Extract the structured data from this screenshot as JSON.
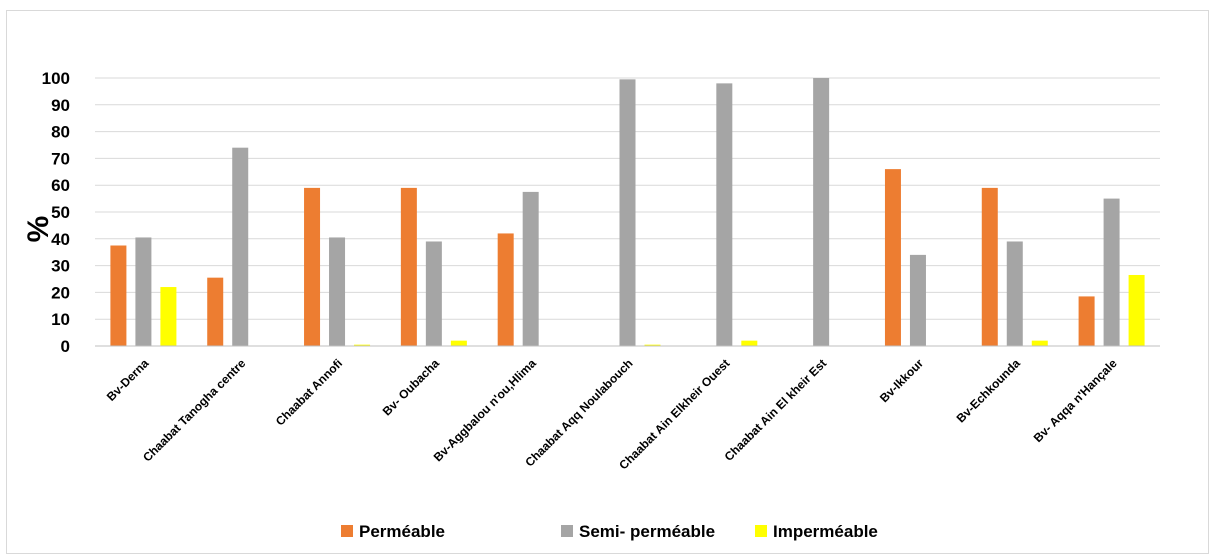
{
  "chart_data": {
    "type": "bar",
    "title": "",
    "xlabel": "",
    "ylabel": "%",
    "ylim": [
      0,
      100
    ],
    "yticks": [
      0,
      10,
      20,
      30,
      40,
      50,
      60,
      70,
      80,
      90,
      100
    ],
    "grid": true,
    "legend_position": "bottom",
    "categories": [
      "Bv-Derna",
      "Chaabat Tanogha centre",
      "Chaabat Annofi",
      "Bv- Oubacha",
      "Bv-Aggbalou n'ou,Hlima",
      "Chaabat Aqq Noulabouch",
      "Chaabat Ain Elkheir Ouest",
      "Chaabat Ain El kheir Est",
      "Bv-Ikkour",
      "Bv-Echkounda",
      "Bv- Aqqa n'Hançale"
    ],
    "series": [
      {
        "name": "Perméable",
        "color": "#ED7D31",
        "values": [
          37.5,
          25.5,
          59,
          59,
          42,
          0,
          0,
          0,
          66,
          59,
          18.5
        ]
      },
      {
        "name": "Semi- perméable",
        "color": "#A5A5A5",
        "values": [
          40.5,
          74,
          40.5,
          39,
          57.5,
          99.5,
          98,
          100,
          34,
          39,
          55
        ]
      },
      {
        "name": "Imperméable",
        "color": "#FFFF00",
        "values": [
          22,
          0,
          0.5,
          2,
          0,
          0.5,
          2,
          0,
          0,
          2,
          26.5
        ]
      }
    ]
  }
}
